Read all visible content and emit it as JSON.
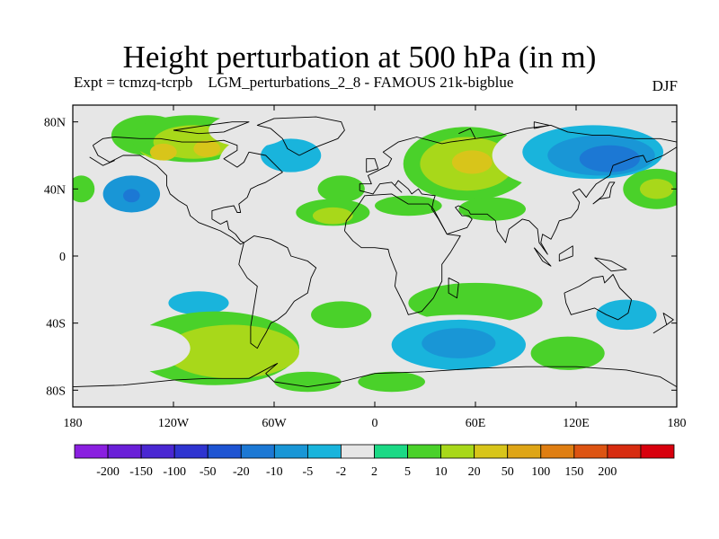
{
  "title": "Height perturbation at 500 hPa (in m)",
  "subtitle": "Expt = tcmzq-tcrpb    LGM_perturbations_2_8 - FAMOUS 21k-bigblue",
  "season": "DJF",
  "map": {
    "lon_range": [
      -180,
      180
    ],
    "lat_range": [
      -90,
      90
    ],
    "y_ticks": [
      {
        "lat": 80,
        "label": "80N"
      },
      {
        "lat": 40,
        "label": "40N"
      },
      {
        "lat": 0,
        "label": "0"
      },
      {
        "lat": -40,
        "label": "40S"
      },
      {
        "lat": -80,
        "label": "80S"
      }
    ],
    "x_ticks": [
      {
        "lon": -180,
        "label": "180"
      },
      {
        "lon": -120,
        "label": "120W"
      },
      {
        "lon": -60,
        "label": "60W"
      },
      {
        "lon": 0,
        "label": "0"
      },
      {
        "lon": 60,
        "label": "60E"
      },
      {
        "lon": 120,
        "label": "120E"
      },
      {
        "lon": 180,
        "label": "180"
      }
    ],
    "background_color": "#e6e6e6"
  },
  "colorbar": {
    "colors": [
      "#8a1fe0",
      "#6a1fd8",
      "#4a27d2",
      "#2f34d0",
      "#1e54d2",
      "#1c78d4",
      "#1996d6",
      "#19b4dc",
      "#e6e6e6",
      "#1bd985",
      "#4ad12a",
      "#a8d81a",
      "#d8c51a",
      "#dea516",
      "#df7e12",
      "#dd5412",
      "#d72c10",
      "#d8000d"
    ],
    "labels": [
      "-200",
      "-150",
      "-100",
      "-50",
      "-20",
      "-10",
      "-5",
      "-2",
      "2",
      "5",
      "10",
      "20",
      "50",
      "100",
      "150",
      "200"
    ]
  },
  "fields": [
    {
      "lon": -135,
      "lat": 72,
      "rx": 22,
      "ry": 12,
      "value": 5
    },
    {
      "lon": -125,
      "lat": 66,
      "rx": 16,
      "ry": 9,
      "value": 10
    },
    {
      "lon": -110,
      "lat": 70,
      "rx": 35,
      "ry": 14,
      "value": 5
    },
    {
      "lon": -108,
      "lat": 68,
      "rx": 24,
      "ry": 10,
      "value": 10
    },
    {
      "lon": -126,
      "lat": 62,
      "rx": 8,
      "ry": 5,
      "value": 20
    },
    {
      "lon": -100,
      "lat": 64,
      "rx": 8,
      "ry": 5,
      "value": 20
    },
    {
      "lon": -150,
      "lat": 40,
      "rx": 28,
      "ry": 18,
      "value": -2
    },
    {
      "lon": -145,
      "lat": 37,
      "rx": 17,
      "ry": 11,
      "value": -10
    },
    {
      "lon": -145,
      "lat": 36,
      "rx": 5,
      "ry": 4,
      "value": -20
    },
    {
      "lon": -65,
      "lat": 55,
      "rx": 28,
      "ry": 18,
      "value": -2
    },
    {
      "lon": -50,
      "lat": 60,
      "rx": 18,
      "ry": 10,
      "value": -5
    },
    {
      "lon": -75,
      "lat": 75,
      "rx": 24,
      "ry": 10,
      "value": -2
    },
    {
      "lon": -175,
      "lat": 40,
      "rx": 8,
      "ry": 8,
      "value": 5
    },
    {
      "lon": -178,
      "lat": 70,
      "rx": 6,
      "ry": 9,
      "value": -2
    },
    {
      "lon": -20,
      "lat": 40,
      "rx": 14,
      "ry": 8,
      "value": 5
    },
    {
      "lon": -25,
      "lat": 26,
      "rx": 22,
      "ry": 8,
      "value": 5
    },
    {
      "lon": -25,
      "lat": 24,
      "rx": 12,
      "ry": 5,
      "value": 10
    },
    {
      "lon": 20,
      "lat": 82,
      "rx": 30,
      "ry": 8,
      "value": -2
    },
    {
      "lon": 55,
      "lat": 55,
      "rx": 38,
      "ry": 22,
      "value": 5
    },
    {
      "lon": 55,
      "lat": 55,
      "rx": 28,
      "ry": 16,
      "value": 10
    },
    {
      "lon": 58,
      "lat": 56,
      "rx": 12,
      "ry": 7,
      "value": 20
    },
    {
      "lon": 20,
      "lat": 30,
      "rx": 20,
      "ry": 6,
      "value": 5
    },
    {
      "lon": 70,
      "lat": 28,
      "rx": 20,
      "ry": 7,
      "value": 5
    },
    {
      "lon": 125,
      "lat": 60,
      "rx": 55,
      "ry": 22,
      "value": -2
    },
    {
      "lon": 130,
      "lat": 62,
      "rx": 42,
      "ry": 16,
      "value": -5
    },
    {
      "lon": 135,
      "lat": 60,
      "rx": 32,
      "ry": 12,
      "value": -10
    },
    {
      "lon": 140,
      "lat": 58,
      "rx": 18,
      "ry": 8,
      "value": -20
    },
    {
      "lon": 105,
      "lat": 20,
      "rx": 15,
      "ry": 10,
      "value": -2
    },
    {
      "lon": 168,
      "lat": 40,
      "rx": 20,
      "ry": 12,
      "value": 5
    },
    {
      "lon": 168,
      "lat": 40,
      "rx": 10,
      "ry": 6,
      "value": 10
    },
    {
      "lon": -110,
      "lat": -30,
      "rx": 30,
      "ry": 12,
      "value": -2
    },
    {
      "lon": -105,
      "lat": -28,
      "rx": 18,
      "ry": 7,
      "value": -5
    },
    {
      "lon": -95,
      "lat": -55,
      "rx": 50,
      "ry": 22,
      "value": 5
    },
    {
      "lon": -85,
      "lat": -57,
      "rx": 40,
      "ry": 16,
      "value": 10
    },
    {
      "lon": -140,
      "lat": -55,
      "rx": 30,
      "ry": 14,
      "value": -2
    },
    {
      "lon": -20,
      "lat": -35,
      "rx": 18,
      "ry": 8,
      "value": 5
    },
    {
      "lon": 60,
      "lat": -28,
      "rx": 40,
      "ry": 12,
      "value": 5
    },
    {
      "lon": 50,
      "lat": -55,
      "rx": 55,
      "ry": 20,
      "value": -2
    },
    {
      "lon": 50,
      "lat": -53,
      "rx": 40,
      "ry": 15,
      "value": -5
    },
    {
      "lon": 50,
      "lat": -52,
      "rx": 22,
      "ry": 9,
      "value": -10
    },
    {
      "lon": 115,
      "lat": -58,
      "rx": 22,
      "ry": 10,
      "value": 5
    },
    {
      "lon": 150,
      "lat": -35,
      "rx": 28,
      "ry": 14,
      "value": -2
    },
    {
      "lon": 150,
      "lat": -35,
      "rx": 18,
      "ry": 9,
      "value": -5
    },
    {
      "lon": 150,
      "lat": -75,
      "rx": 30,
      "ry": 8,
      "value": -2
    },
    {
      "lon": -40,
      "lat": -75,
      "rx": 20,
      "ry": 6,
      "value": 5
    },
    {
      "lon": -160,
      "lat": -75,
      "rx": 18,
      "ry": 6,
      "value": -2
    },
    {
      "lon": 10,
      "lat": -75,
      "rx": 20,
      "ry": 6,
      "value": 5
    }
  ],
  "coastlines": [
    [
      [
        -168,
        66
      ],
      [
        -162,
        70
      ],
      [
        -155,
        71
      ],
      [
        -140,
        70
      ],
      [
        -128,
        70
      ],
      [
        -115,
        68
      ],
      [
        -100,
        68
      ],
      [
        -90,
        69
      ],
      [
        -82,
        66
      ],
      [
        -82,
        63
      ],
      [
        -90,
        58
      ],
      [
        -82,
        53
      ],
      [
        -78,
        56
      ],
      [
        -75,
        62
      ],
      [
        -65,
        60
      ],
      [
        -60,
        55
      ],
      [
        -55,
        50
      ],
      [
        -65,
        44
      ],
      [
        -70,
        42
      ],
      [
        -74,
        40
      ],
      [
        -76,
        35
      ],
      [
        -81,
        31
      ],
      [
        -80,
        26
      ],
      [
        -82,
        26
      ],
      [
        -84,
        30
      ],
      [
        -90,
        29
      ],
      [
        -97,
        27
      ],
      [
        -97,
        22
      ],
      [
        -92,
        19
      ],
      [
        -88,
        21
      ],
      [
        -87,
        16
      ],
      [
        -83,
        13
      ],
      [
        -80,
        9
      ],
      [
        -78,
        8
      ],
      [
        -80,
        7
      ],
      [
        -85,
        11
      ],
      [
        -92,
        15
      ],
      [
        -105,
        20
      ],
      [
        -110,
        24
      ],
      [
        -112,
        30
      ],
      [
        -117,
        33
      ],
      [
        -122,
        37
      ],
      [
        -124,
        42
      ],
      [
        -124,
        48
      ],
      [
        -130,
        54
      ],
      [
        -140,
        60
      ],
      [
        -150,
        60
      ],
      [
        -158,
        56
      ],
      [
        -165,
        60
      ],
      [
        -168,
        66
      ]
    ],
    [
      [
        -78,
        8
      ],
      [
        -72,
        12
      ],
      [
        -62,
        10
      ],
      [
        -52,
        5
      ],
      [
        -50,
        0
      ],
      [
        -40,
        -3
      ],
      [
        -35,
        -7
      ],
      [
        -38,
        -13
      ],
      [
        -40,
        -22
      ],
      [
        -48,
        -27
      ],
      [
        -53,
        -34
      ],
      [
        -58,
        -38
      ],
      [
        -62,
        -40
      ],
      [
        -65,
        -46
      ],
      [
        -68,
        -51
      ],
      [
        -70,
        -55
      ],
      [
        -74,
        -52
      ],
      [
        -74,
        -42
      ],
      [
        -72,
        -30
      ],
      [
        -70,
        -18
      ],
      [
        -76,
        -13
      ],
      [
        -81,
        -5
      ],
      [
        -80,
        0
      ],
      [
        -78,
        8
      ]
    ],
    [
      [
        -45,
        60
      ],
      [
        -52,
        64
      ],
      [
        -55,
        70
      ],
      [
        -62,
        76
      ],
      [
        -70,
        78
      ],
      [
        -60,
        82
      ],
      [
        -35,
        83
      ],
      [
        -20,
        80
      ],
      [
        -18,
        75
      ],
      [
        -22,
        70
      ],
      [
        -35,
        65
      ],
      [
        -45,
        60
      ]
    ],
    [
      [
        -18,
        15
      ],
      [
        -17,
        21
      ],
      [
        -10,
        30
      ],
      [
        -6,
        36
      ],
      [
        10,
        37
      ],
      [
        20,
        31
      ],
      [
        32,
        31
      ],
      [
        35,
        28
      ],
      [
        43,
        13
      ],
      [
        51,
        12
      ],
      [
        45,
        2
      ],
      [
        40,
        -5
      ],
      [
        40,
        -15
      ],
      [
        35,
        -25
      ],
      [
        28,
        -33
      ],
      [
        20,
        -35
      ],
      [
        18,
        -30
      ],
      [
        12,
        -18
      ],
      [
        13,
        -10
      ],
      [
        9,
        0
      ],
      [
        8,
        4
      ],
      [
        0,
        5
      ],
      [
        -8,
        5
      ],
      [
        -13,
        9
      ],
      [
        -18,
        15
      ]
    ],
    [
      [
        -9,
        39
      ],
      [
        -9,
        43
      ],
      [
        -2,
        43
      ],
      [
        -4,
        48
      ],
      [
        2,
        51
      ],
      [
        8,
        54
      ],
      [
        10,
        58
      ],
      [
        5,
        62
      ],
      [
        14,
        68
      ],
      [
        25,
        71
      ],
      [
        40,
        67
      ],
      [
        45,
        68
      ],
      [
        60,
        70
      ],
      [
        75,
        72
      ],
      [
        90,
        76
      ],
      [
        105,
        78
      ],
      [
        115,
        74
      ],
      [
        130,
        72
      ],
      [
        140,
        72
      ],
      [
        155,
        70
      ],
      [
        170,
        70
      ],
      [
        180,
        68
      ]
    ],
    [
      [
        180,
        65
      ],
      [
        172,
        60
      ],
      [
        162,
        56
      ],
      [
        160,
        60
      ],
      [
        155,
        59
      ],
      [
        142,
        54
      ],
      [
        140,
        48
      ],
      [
        132,
        43
      ],
      [
        128,
        38
      ],
      [
        126,
        35
      ],
      [
        122,
        40
      ],
      [
        118,
        38
      ],
      [
        122,
        32
      ],
      [
        121,
        28
      ],
      [
        117,
        23
      ],
      [
        110,
        21
      ],
      [
        108,
        16
      ],
      [
        105,
        10
      ],
      [
        100,
        13
      ],
      [
        99,
        8
      ],
      [
        103,
        1
      ],
      [
        98,
        8
      ],
      [
        97,
        16
      ],
      [
        92,
        21
      ],
      [
        88,
        22
      ],
      [
        80,
        16
      ],
      [
        78,
        8
      ],
      [
        73,
        15
      ],
      [
        72,
        21
      ],
      [
        67,
        25
      ],
      [
        57,
        25
      ],
      [
        56,
        27
      ],
      [
        50,
        30
      ],
      [
        48,
        29
      ],
      [
        52,
        24
      ],
      [
        56,
        24
      ],
      [
        58,
        22
      ],
      [
        55,
        17
      ],
      [
        43,
        13
      ],
      [
        38,
        22
      ],
      [
        34,
        28
      ],
      [
        35,
        33
      ],
      [
        36,
        36
      ],
      [
        28,
        37
      ],
      [
        26,
        40
      ],
      [
        22,
        37
      ],
      [
        20,
        40
      ],
      [
        14,
        45
      ],
      [
        12,
        42
      ],
      [
        16,
        38
      ],
      [
        10,
        44
      ],
      [
        3,
        43
      ],
      [
        -1,
        37
      ],
      [
        -9,
        39
      ]
    ],
    [
      [
        113,
        -22
      ],
      [
        122,
        -18
      ],
      [
        130,
        -13
      ],
      [
        136,
        -12
      ],
      [
        137,
        -16
      ],
      [
        142,
        -11
      ],
      [
        146,
        -19
      ],
      [
        153,
        -26
      ],
      [
        151,
        -34
      ],
      [
        145,
        -38
      ],
      [
        138,
        -35
      ],
      [
        131,
        -31
      ],
      [
        117,
        -35
      ],
      [
        114,
        -28
      ],
      [
        113,
        -22
      ]
    ],
    [
      [
        -180,
        -78
      ],
      [
        -150,
        -77
      ],
      [
        -120,
        -74
      ],
      [
        -100,
        -73
      ],
      [
        -75,
        -73
      ],
      [
        -60,
        -65
      ],
      [
        -58,
        -64
      ],
      [
        -65,
        -70
      ],
      [
        -60,
        -75
      ],
      [
        -40,
        -78
      ],
      [
        -20,
        -75
      ],
      [
        0,
        -70
      ],
      [
        30,
        -69
      ],
      [
        60,
        -67
      ],
      [
        90,
        -66
      ],
      [
        120,
        -66
      ],
      [
        150,
        -68
      ],
      [
        170,
        -72
      ],
      [
        180,
        -78
      ]
    ],
    [
      [
        -5,
        50
      ],
      [
        -5,
        58
      ],
      [
        0,
        58
      ],
      [
        2,
        52
      ],
      [
        -5,
        50
      ]
    ],
    [
      [
        -170,
        59
      ],
      [
        -162,
        54
      ],
      [
        -155,
        57
      ]
    ],
    [
      [
        -120,
        75
      ],
      [
        -100,
        78
      ],
      [
        -85,
        80
      ],
      [
        -75,
        80
      ],
      [
        -90,
        74
      ],
      [
        -105,
        73
      ],
      [
        -120,
        75
      ]
    ],
    [
      [
        44,
        -13
      ],
      [
        50,
        -16
      ],
      [
        49,
        -25
      ],
      [
        44,
        -22
      ],
      [
        44,
        -13
      ]
    ],
    [
      [
        130,
        31
      ],
      [
        134,
        34
      ],
      [
        140,
        35
      ],
      [
        141,
        41
      ],
      [
        143,
        44
      ],
      [
        140,
        44
      ],
      [
        136,
        36
      ],
      [
        130,
        31
      ]
    ],
    [
      [
        95,
        5
      ],
      [
        105,
        -6
      ],
      [
        100,
        -3
      ],
      [
        95,
        5
      ]
    ],
    [
      [
        110,
        1
      ],
      [
        118,
        6
      ],
      [
        118,
        0
      ],
      [
        110,
        -3
      ],
      [
        110,
        1
      ]
    ],
    [
      [
        131,
        -1
      ],
      [
        141,
        -3
      ],
      [
        150,
        -8
      ],
      [
        141,
        -9
      ],
      [
        131,
        -1
      ]
    ],
    [
      [
        166,
        -46
      ],
      [
        174,
        -41
      ],
      [
        178,
        -38
      ],
      [
        172,
        -34
      ],
      [
        174,
        -41
      ],
      [
        166,
        -46
      ]
    ],
    [
      [
        95,
        76
      ],
      [
        104,
        78
      ],
      [
        95,
        80
      ],
      [
        95,
        76
      ]
    ],
    [
      [
        50,
        73
      ],
      [
        57,
        76
      ],
      [
        60,
        70
      ]
    ]
  ]
}
